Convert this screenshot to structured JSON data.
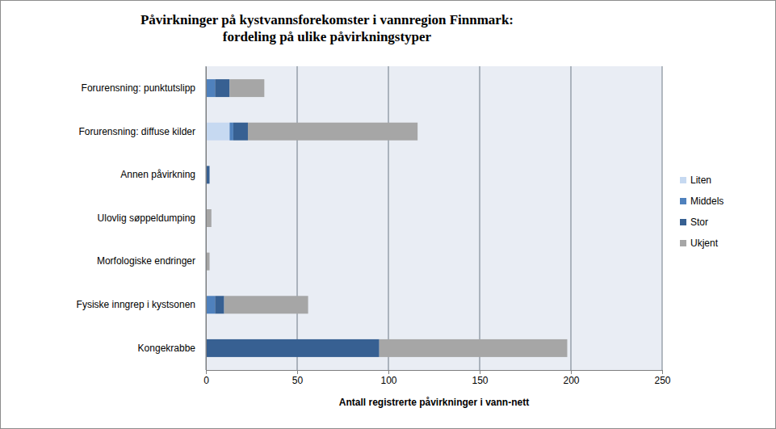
{
  "chart_data": {
    "type": "bar",
    "orientation": "horizontal",
    "stacked": true,
    "grid": true,
    "legend": "right",
    "title": [
      "Påvirkninger på kystvannsforekomster i vannregion Finnmark:",
      "fordeling på ulike påvirkningstyper"
    ],
    "x_label": "Antall registrerte påvirkninger i vann-nett",
    "categories": [
      "Forurensning: punktutslipp",
      "Forurensning: diffuse kilder",
      "Annen påvirkning",
      "Ulovlig søppeldumping",
      "Morfologiske endringer",
      "Fysiske inngrep i kystsonen",
      "Kongekrabbe"
    ],
    "xlim": [
      0,
      250
    ],
    "xticks": [
      0,
      50,
      100,
      150,
      200,
      250
    ],
    "series": [
      {
        "name": "Liten",
        "color": "#c6d9f1",
        "values": [
          0,
          13,
          0,
          0,
          0,
          0,
          0
        ]
      },
      {
        "name": "Middels",
        "color": "#4f81bd",
        "values": [
          5,
          2,
          0,
          0,
          0,
          5,
          0
        ]
      },
      {
        "name": "Stor",
        "color": "#376092",
        "values": [
          8,
          8,
          2,
          0,
          0,
          5,
          95
        ]
      },
      {
        "name": "Ukjent",
        "color": "#a6a6a6",
        "values": [
          19,
          93,
          0,
          3,
          2,
          46,
          103
        ]
      }
    ]
  }
}
